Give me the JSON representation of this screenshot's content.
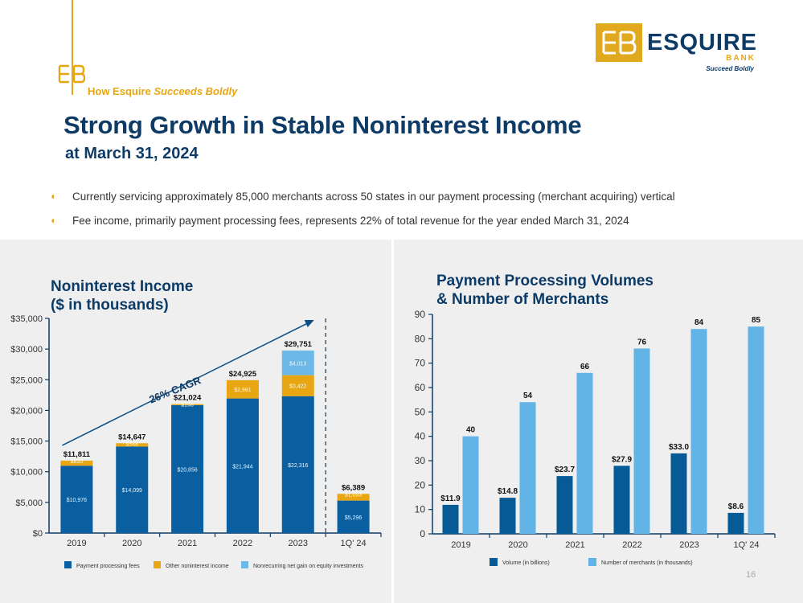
{
  "header": {
    "tagline_prefix": "How Esquire ",
    "tagline_emph": "Succeeds Boldly",
    "title": "Strong Growth in Stable Noninterest Income",
    "subtitle": "at March 31, 2024",
    "logo_name": "ESQUIRE",
    "logo_sub": "BANK",
    "logo_tag": "Succeed Boldly"
  },
  "bullets": [
    "Currently servicing approximately 85,000 merchants across 50 states in our payment processing (merchant acquiring) vertical",
    "Fee income, primarily payment processing fees, represents 22% of total revenue for the year ended March 31, 2024"
  ],
  "page_number": "16",
  "colors": {
    "navy": "#0d3b66",
    "gold": "#e8a712",
    "dark_blue": "#065a96",
    "light_blue": "#62b4e6",
    "payment_fees": "#0a5fa0",
    "other_income": "#e8a712",
    "equity_gain": "#6cb8e6"
  },
  "chart_data": [
    {
      "type": "bar",
      "stacked": true,
      "title_line1": "Noninterest Income",
      "title_line2": "($ in thousands)",
      "categories": [
        "2019",
        "2020",
        "2021",
        "2022",
        "2023",
        "1Q' 24"
      ],
      "series": [
        {
          "name": "Payment processing fees",
          "values": [
            10976,
            14099,
            20856,
            21944,
            22316,
            5296
          ],
          "labels": [
            "$10,976",
            "$14,099",
            "$20,856",
            "$21,944",
            "$22,316",
            "$5,296"
          ]
        },
        {
          "name": "Other noninterest income",
          "values": [
            835,
            548,
            168,
            2981,
            3422,
            1093
          ],
          "labels": [
            "$835",
            "$548",
            "$168",
            "$2,981",
            "$3,422",
            "$1,093"
          ]
        },
        {
          "name": "Nonrecurring net gain on equity investments",
          "values": [
            0,
            0,
            0,
            0,
            4013,
            0
          ],
          "labels": [
            "",
            "",
            "",
            "",
            "$4,013",
            ""
          ]
        }
      ],
      "totals": [
        "$11,811",
        "$14,647",
        "$21,024",
        "$24,925",
        "$29,751",
        "$6,389"
      ],
      "yticks": [
        "$0",
        "$5,000",
        "$10,000",
        "$15,000",
        "$20,000",
        "$25,000",
        "$30,000",
        "$35,000"
      ],
      "ylim": [
        0,
        35000
      ],
      "annotation": "26% CAGR",
      "legend_position": "bottom"
    },
    {
      "type": "bar",
      "title_line1": "Payment Processing Volumes",
      "title_line2": "& Number of Merchants",
      "categories": [
        "2019",
        "2020",
        "2021",
        "2022",
        "2023",
        "1Q' 24"
      ],
      "series": [
        {
          "name": "Volume (in billions)",
          "values": [
            11.9,
            14.8,
            23.7,
            27.9,
            33.0,
            8.6
          ],
          "labels": [
            "$11.9",
            "$14.8",
            "$23.7",
            "$27.9",
            "$33.0",
            "$8.6"
          ]
        },
        {
          "name": "Number of merchants (in thousands)",
          "values": [
            40,
            54,
            66,
            76,
            84,
            85
          ],
          "labels": [
            "40",
            "54",
            "66",
            "76",
            "84",
            "85"
          ]
        }
      ],
      "yticks": [
        "0",
        "10",
        "20",
        "30",
        "40",
        "50",
        "60",
        "70",
        "80",
        "90"
      ],
      "ylim": [
        0,
        90
      ],
      "legend_position": "bottom"
    }
  ]
}
